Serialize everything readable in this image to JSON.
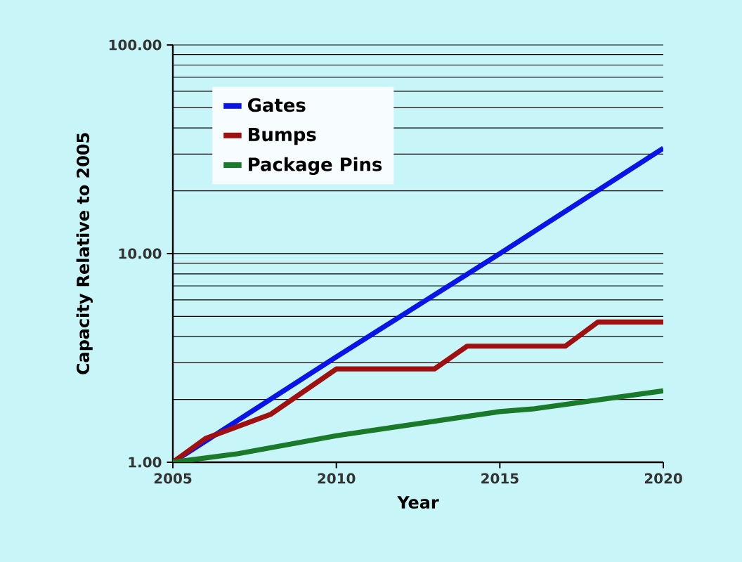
{
  "chart_data": {
    "type": "line",
    "xlabel": "Year",
    "ylabel": "Capacity Relative to 2005",
    "log": "y",
    "grid": "y",
    "legend": "top left",
    "line_style": "solid",
    "marker": "none",
    "xlim": [
      2005,
      2020
    ],
    "xticks": [
      2005,
      2010,
      2015,
      2020
    ],
    "ylim": [
      1,
      100
    ],
    "yticks": [
      {
        "value": 1,
        "label": "1.00"
      },
      {
        "value": 10,
        "label": "10.00"
      },
      {
        "value": 100,
        "label": "100.00"
      }
    ],
    "series": [
      {
        "name": "Gates",
        "color": "#0a14e6",
        "x": [
          2005,
          2010,
          2015,
          2020
        ],
        "values": [
          1,
          3.2,
          10,
          32
        ]
      },
      {
        "name": "Bumps",
        "color": "#a01010",
        "x": [
          2005,
          2006,
          2008,
          2010,
          2013,
          2014,
          2017,
          2018,
          2020
        ],
        "values": [
          1,
          1.3,
          1.7,
          2.8,
          2.8,
          3.6,
          3.6,
          4.7,
          4.7
        ]
      },
      {
        "name": "Package Pins",
        "color": "#1a7a2a",
        "x": [
          2005,
          2007,
          2010,
          2015,
          2016,
          2020
        ],
        "values": [
          1,
          1.1,
          1.34,
          1.75,
          1.8,
          2.2
        ]
      }
    ]
  }
}
